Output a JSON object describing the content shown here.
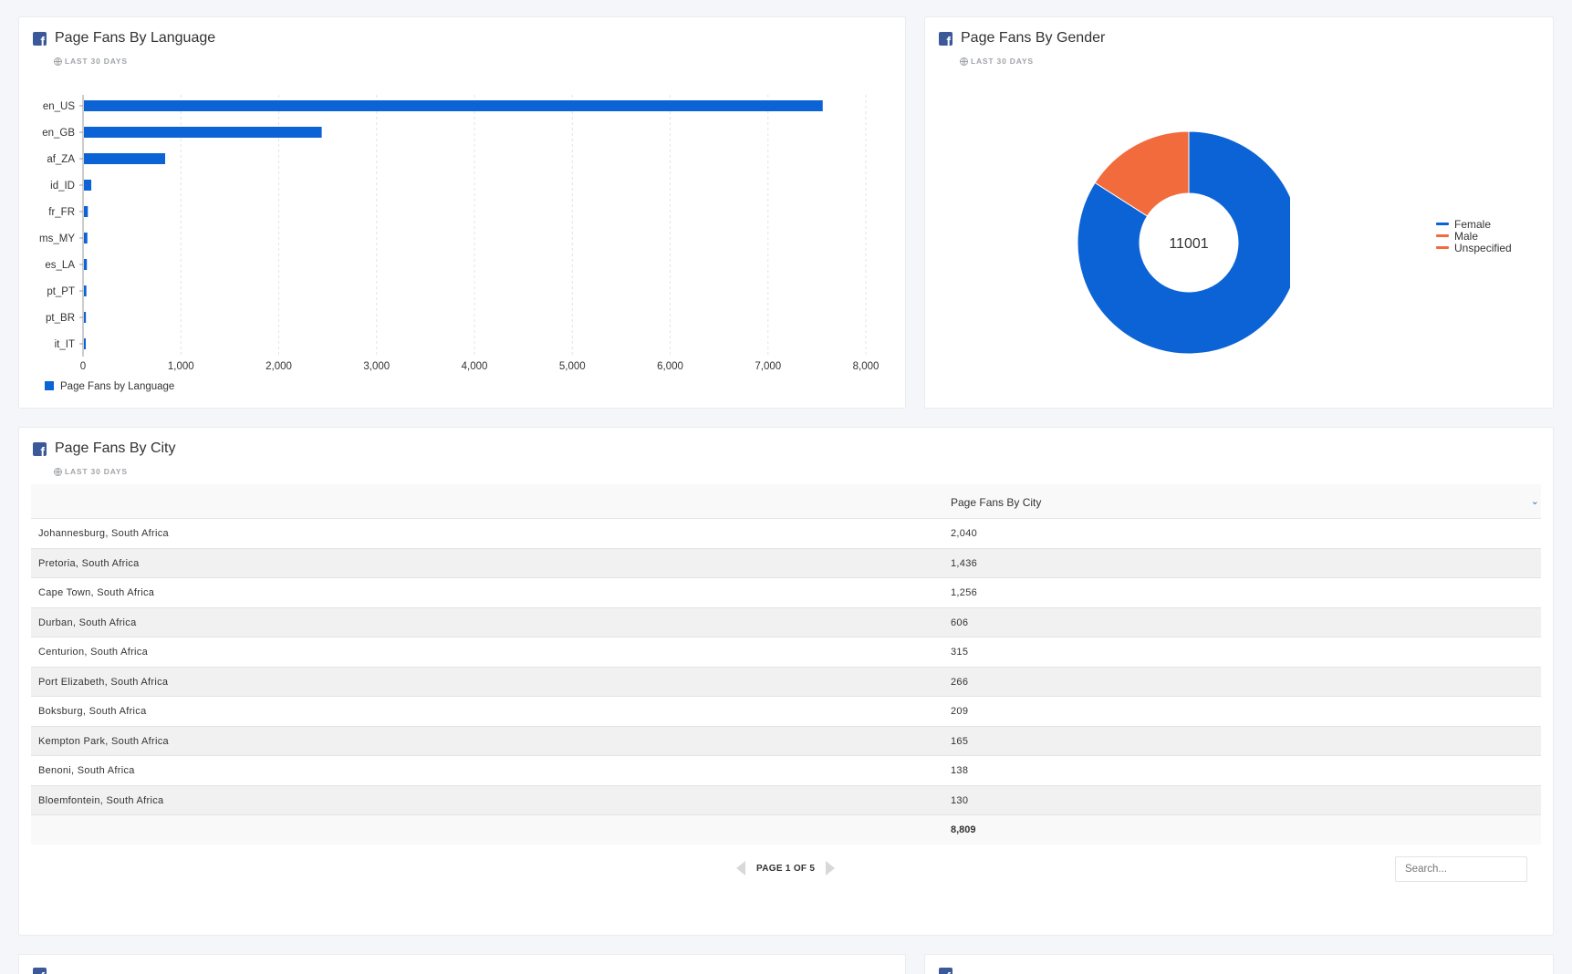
{
  "cards": {
    "language": {
      "title": "Page Fans By Language",
      "subtitle": "LAST 30 DAYS",
      "legend": "Page Fans by Language"
    },
    "gender": {
      "title": "Page Fans By Gender",
      "subtitle": "LAST 30 DAYS",
      "center_value": "11001"
    },
    "city": {
      "title": "Page Fans By City",
      "subtitle": "LAST 30 DAYS",
      "column_header": "Page Fans By City",
      "rows": [
        {
          "city": "Johannesburg, South Africa",
          "value": "2,040"
        },
        {
          "city": "Pretoria, South Africa",
          "value": "1,436"
        },
        {
          "city": "Cape Town, South Africa",
          "value": "1,256"
        },
        {
          "city": "Durban, South Africa",
          "value": "606"
        },
        {
          "city": "Centurion, South Africa",
          "value": "315"
        },
        {
          "city": "Port Elizabeth, South Africa",
          "value": "266"
        },
        {
          "city": "Boksburg, South Africa",
          "value": "209"
        },
        {
          "city": "Kempton Park, South Africa",
          "value": "165"
        },
        {
          "city": "Benoni, South Africa",
          "value": "138"
        },
        {
          "city": "Bloemfontein, South Africa",
          "value": "130"
        }
      ],
      "total": "8,809",
      "pagination": "PAGE 1 OF 5",
      "search_placeholder": "Search..."
    }
  },
  "icons": {
    "card_icon": "facebook-icon",
    "subtitle_icon": "globe-icon",
    "sort_icon": "chevron-down-icon",
    "prev": "arrow-left-icon",
    "next": "arrow-right-icon"
  },
  "colors": {
    "bar": "#0c63d6",
    "female": "#0c63d6",
    "male": "#f26b3d",
    "unspecified": "#f26b3d",
    "facebook": "#3b5998"
  },
  "chart_data": [
    {
      "type": "bar",
      "orientation": "horizontal",
      "categories": [
        "en_US",
        "en_GB",
        "af_ZA",
        "id_ID",
        "fr_FR",
        "ms_MY",
        "es_LA",
        "pt_PT",
        "pt_BR",
        "it_IT"
      ],
      "series": [
        {
          "name": "Page Fans by Language",
          "values": [
            7550,
            2430,
            830,
            75,
            40,
            35,
            30,
            25,
            20,
            15
          ]
        }
      ],
      "xlim": [
        0,
        8000
      ],
      "xticks": [
        "0",
        "1,000",
        "2,000",
        "3,000",
        "4,000",
        "5,000",
        "6,000",
        "7,000",
        "8,000"
      ],
      "grid": "vertical dashed",
      "legend": "bottom-left"
    },
    {
      "type": "pie",
      "donut": true,
      "center_label": "11001",
      "labels": [
        "Female",
        "Male",
        "Unspecified"
      ],
      "values": [
        9245,
        1756,
        0
      ],
      "legend": "right"
    }
  ]
}
